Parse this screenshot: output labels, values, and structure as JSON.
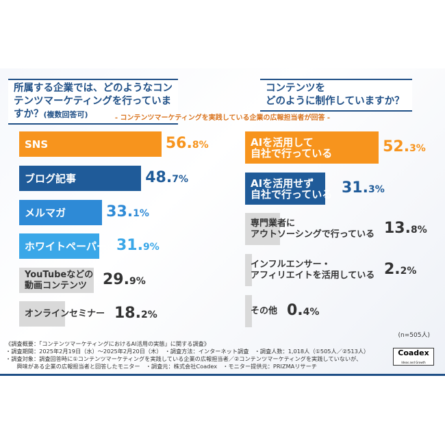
{
  "header": {
    "q1": "所属する企業では、どのようなコンテンツマーケティングを行っていますか？",
    "q1_note": "(複数回答可)",
    "q2_line1": "コンテンツを",
    "q2_line2": "どのように制作していますか？",
    "subtitle": "- コンテンツマーケティングを実践している企業の広報担当者が回答 -"
  },
  "chart_data": [
    {
      "type": "bar",
      "orientation": "horizontal",
      "categories": [
        "SNS",
        "ブログ記事",
        "メルマガ",
        "ホワイトペーパー",
        "YouTubeなどの動画コンテンツ",
        "オンラインセミナー"
      ],
      "values": [
        56.8,
        48.7,
        33.1,
        31.9,
        29.9,
        18.2
      ],
      "unit": "%",
      "colors": [
        "#f7941d",
        "#1f5b99",
        "#2e8ad6",
        "#3aa7e8",
        "#d9d9d9",
        "#d9d9d9"
      ]
    },
    {
      "type": "bar",
      "orientation": "horizontal",
      "categories": [
        "AIを活用して自社で行っている",
        "AIを活用せず自社で行っている",
        "専門業者にアウトソーシングで行っている",
        "インフルエンサー・アフィリエイトを活用している",
        "その他"
      ],
      "values": [
        52.3,
        31.3,
        13.8,
        2.2,
        0.4
      ],
      "unit": "%",
      "colors": [
        "#f7941d",
        "#1f5b99",
        "#d9d9d9",
        "#d9d9d9",
        "#d9d9d9"
      ]
    }
  ],
  "labels_left": [
    "SNS",
    "ブログ記事",
    "メルマガ",
    "ホワイトペーパー",
    "YouTubeなどの\n動画コンテンツ",
    "オンラインセミナー"
  ],
  "labels_right": [
    "AIを活用して\n自社で行っている",
    "AIを活用せず\n自社で行っている",
    "専門業者に\nアウトソーシングで行っている",
    "インフルエンサー・\nアフィリエイトを活用している",
    "その他"
  ],
  "n_label": "(n=505人)",
  "footer": {
    "line1": "《調査概要：「コンテンツマーケティングにおけるAI活用の実態」に関する調査》",
    "line2": "・調査期間：2025年2月19日（水）～2025年2月20日（木）　・調査方法：インターネット調査　・調査人数：1,018人（①505人／②513人）",
    "line3": "・調査対象：調査回答時に①コンテンツマーケティングを実践している企業の広報担当者／②コンテンツマーケティングを実践していないが、",
    "line4": "　　興味がある企業の広報担当者と回答したモニター　・調査元：株式会社Coadex　・モニター提供元：PRIZMAリサーチ"
  },
  "logo": {
    "name": "Coadex",
    "tagline": "Ideas and Growth"
  }
}
